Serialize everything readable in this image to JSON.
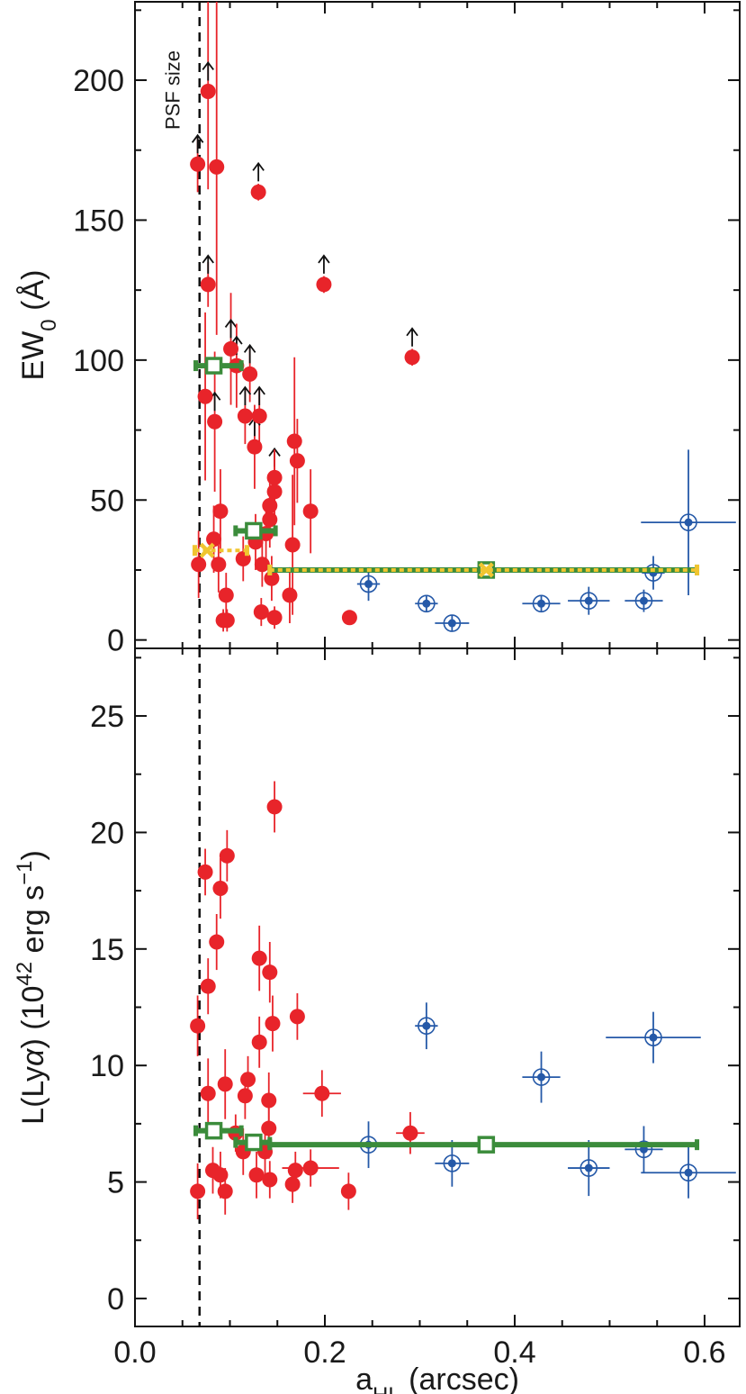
{
  "charts": [
    {
      "type": "scatter",
      "ylabel": [
        {
          "text": "EW"
        },
        {
          "text": "0",
          "shift": "sub"
        },
        {
          "text": " (Å)"
        }
      ],
      "xlim": [
        0,
        0.637
      ],
      "ylim": [
        -3,
        228
      ],
      "xticks": [
        0,
        0.2,
        0.4,
        0.6
      ],
      "xminorticks": [
        0.05,
        0.1,
        0.15,
        0.25,
        0.3,
        0.35,
        0.45,
        0.5,
        0.55
      ],
      "yticks": [
        0,
        50,
        100,
        150,
        200
      ],
      "yminorticks": [
        25,
        75,
        125,
        175,
        225
      ],
      "vline": {
        "x": 0.068,
        "label": "PSF size"
      },
      "series": [
        {
          "marker": "circle",
          "color": "#e8242a",
          "x": [
            0.066,
            0.077,
            0.086,
            0.13,
            0.077,
            0.199,
            0.292,
            0.074,
            0.084,
            0.101,
            0.107,
            0.121,
            0.116,
            0.131,
            0.126,
            0.147,
            0.147,
            0.09,
            0.083,
            0.067,
            0.088,
            0.096,
            0.093,
            0.097,
            0.142,
            0.142,
            0.138,
            0.127,
            0.114,
            0.134,
            0.144,
            0.133,
            0.147,
            0.163,
            0.166,
            0.171,
            0.168,
            0.185,
            0.226
          ],
          "values": [
            170,
            196,
            169,
            160,
            127,
            127,
            101,
            87,
            78,
            104,
            98,
            95,
            80,
            80,
            69,
            58,
            53,
            46,
            36,
            27,
            27,
            16,
            7,
            7,
            48,
            43,
            38,
            35,
            29,
            27,
            22,
            10,
            8,
            16,
            34,
            64,
            71,
            46,
            8
          ],
          "yerr": [
            10,
            35,
            60,
            3,
            8,
            3,
            3,
            30,
            25,
            20,
            15,
            10,
            10,
            10,
            15,
            10,
            15,
            15,
            12,
            12,
            10,
            8,
            4,
            4,
            10,
            10,
            10,
            10,
            8,
            8,
            8,
            5,
            4,
            10,
            25,
            15,
            30,
            15,
            2
          ],
          "lower_limit": [
            true,
            true,
            false,
            true,
            true,
            true,
            true,
            false,
            true,
            true,
            true,
            true,
            true,
            true,
            true,
            true,
            false,
            false,
            false,
            false,
            false,
            false,
            false,
            false,
            false,
            false,
            false,
            false,
            false,
            false,
            false,
            false,
            false,
            false,
            false,
            false,
            false,
            false,
            false
          ]
        },
        {
          "marker": "ring-dot",
          "color": "#2559a8",
          "x": [
            0.246,
            0.307,
            0.334,
            0.428,
            0.478,
            0.536,
            0.546,
            0.583
          ],
          "values": [
            20,
            13,
            6,
            13,
            14,
            14,
            24,
            42
          ],
          "xerr": [
            0.012,
            0.012,
            0.018,
            0.02,
            0.022,
            0.02,
            0.012,
            0.05
          ],
          "yerr": [
            6,
            3,
            3,
            3,
            5,
            4,
            6,
            26
          ]
        },
        {
          "marker": "square",
          "color": "#3b8c3b",
          "x": [
            0.083,
            0.125,
            0.37
          ],
          "values": [
            98,
            39,
            25
          ],
          "xmin": [
            0.064,
            0.106,
            0.142
          ],
          "xmax": [
            0.112,
            0.148,
            0.592
          ]
        },
        {
          "marker": "x",
          "color": "#f0c530",
          "x": [
            0.076,
            0.37
          ],
          "values": [
            32,
            25
          ],
          "xmin": [
            0.063,
            0.142
          ],
          "xmax": [
            0.118,
            0.592
          ]
        }
      ]
    },
    {
      "type": "scatter",
      "ylabel": [
        {
          "text": "L(Ly"
        },
        {
          "text": "α",
          "italic": true
        },
        {
          "text": ") (10"
        },
        {
          "text": "42",
          "shift": "super"
        },
        {
          "text": " erg s"
        },
        {
          "text": "−1",
          "shift": "super"
        },
        {
          "text": ")"
        }
      ],
      "xlabel": [
        {
          "text": "a"
        },
        {
          "text": "HL",
          "shift": "sub"
        },
        {
          "text": " (arcsec)"
        }
      ],
      "xlim": [
        0,
        0.637
      ],
      "ylim": [
        -1.2,
        27.9
      ],
      "xticks": [
        {
          "value": 0,
          "label": "0.0"
        },
        0.2,
        0.4,
        0.6
      ],
      "xminorticks": [
        0.05,
        0.1,
        0.15,
        0.25,
        0.3,
        0.35,
        0.45,
        0.5,
        0.55
      ],
      "yticks": [
        0,
        5,
        10,
        15,
        20,
        25
      ],
      "yminorticks": [
        2.5,
        7.5,
        12.5,
        17.5,
        22.5,
        27.5
      ],
      "vline": {
        "x": 0.068
      },
      "series": [
        {
          "marker": "circle",
          "color": "#e8242a",
          "x": [
            0.066,
            0.074,
            0.077,
            0.077,
            0.086,
            0.09,
            0.097,
            0.066,
            0.082,
            0.09,
            0.095,
            0.095,
            0.106,
            0.116,
            0.119,
            0.131,
            0.131,
            0.142,
            0.145,
            0.147,
            0.141,
            0.141,
            0.171,
            0.197,
            0.29,
            0.185,
            0.166,
            0.169,
            0.225,
            0.114,
            0.128,
            0.137,
            0.142
          ],
          "values": [
            11.7,
            18.3,
            13.4,
            8.8,
            15.3,
            17.6,
            19.0,
            4.6,
            5.5,
            5.3,
            4.6,
            9.2,
            7.1,
            8.7,
            9.4,
            14.6,
            11.0,
            14.0,
            11.8,
            21.1,
            8.5,
            7.3,
            12.1,
            8.8,
            7.1,
            5.6,
            4.9,
            5.5,
            4.6,
            6.3,
            5.3,
            6.3,
            5.1
          ],
          "yerr": [
            1.3,
            1.0,
            1.2,
            1.5,
            1.2,
            1.3,
            1.1,
            1.2,
            1.0,
            1.0,
            1.0,
            1.5,
            0.8,
            1.0,
            1.0,
            1.4,
            1.1,
            1.3,
            1.2,
            1.1,
            1.2,
            1.3,
            1.0,
            1.0,
            0.9,
            0.8,
            0.8,
            0.8,
            0.8,
            1.0,
            1.0,
            1.0,
            0.8
          ],
          "xerr": [
            0,
            0,
            0,
            0,
            0,
            0,
            0,
            0,
            0,
            0,
            0,
            0,
            0,
            0,
            0,
            0,
            0,
            0,
            0,
            0,
            0,
            0,
            0,
            0.02,
            0.015,
            0.03,
            0,
            0,
            0,
            0,
            0,
            0,
            0
          ]
        },
        {
          "marker": "ring-dot",
          "color": "#2559a8",
          "x": [
            0.246,
            0.307,
            0.334,
            0.428,
            0.478,
            0.536,
            0.546,
            0.583
          ],
          "values": [
            6.6,
            11.7,
            5.8,
            9.5,
            5.6,
            6.4,
            11.2,
            5.4
          ],
          "xerr": [
            0.012,
            0.012,
            0.018,
            0.02,
            0.022,
            0.02,
            0.05,
            0.05
          ],
          "yerr": [
            1.0,
            1.0,
            1.0,
            1.1,
            1.2,
            1.0,
            1.1,
            1.1
          ]
        },
        {
          "marker": "square",
          "color": "#3b8c3b",
          "x": [
            0.083,
            0.125,
            0.37
          ],
          "values": [
            7.2,
            6.7,
            6.6
          ],
          "xmin": [
            0.064,
            0.106,
            0.142
          ],
          "xmax": [
            0.112,
            0.142,
            0.592
          ]
        }
      ]
    }
  ]
}
